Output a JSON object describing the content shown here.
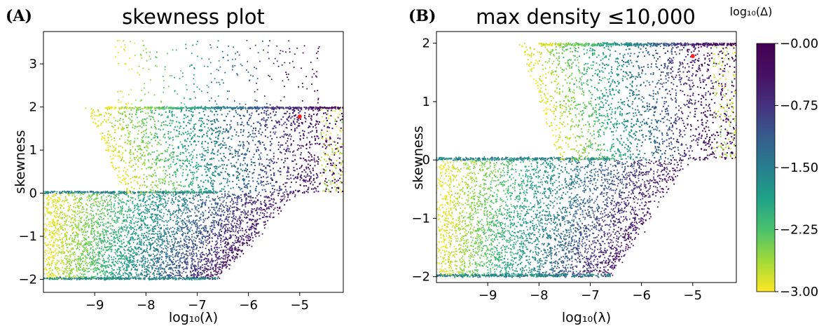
{
  "chart_data": [
    {
      "type": "scatter",
      "panel_label": "(A)",
      "title": "skewness plot",
      "xlabel": "log₁₀(λ)",
      "ylabel": "skewness",
      "xlim": [
        -10.0,
        -4.15
      ],
      "ylim": [
        -2.3,
        3.75
      ],
      "xticks": [
        -9,
        -8,
        -7,
        -6,
        -5
      ],
      "xtick_labels": [
        "−9",
        "−8",
        "−7",
        "−6",
        "−5"
      ],
      "yticks": [
        -2,
        -1,
        0,
        1,
        2,
        3
      ],
      "ytick_labels": [
        "−2",
        "−1",
        "0",
        "1",
        "2",
        "3"
      ],
      "color_variable": "log₁₀(Δ)",
      "marker": {
        "x": -5.0,
        "y": 1.78,
        "color": "#ff2222"
      },
      "point_groups": [
        {
          "region": "lower band",
          "x_range": [
            -10.0,
            -5.4
          ],
          "y_range": [
            -2.0,
            0.0
          ],
          "log10_delta_range": [
            -3.0,
            -0.2
          ]
        },
        {
          "region": "upper band",
          "x_range": [
            -8.8,
            -4.15
          ],
          "y_range": [
            0.0,
            2.0
          ],
          "log10_delta_range": [
            -3.0,
            -0.1
          ]
        },
        {
          "region": "sparse top",
          "x_range": [
            -8.6,
            -4.6
          ],
          "y_range": [
            2.0,
            3.55
          ],
          "log10_delta_range": [
            -3.0,
            -0.3
          ]
        }
      ]
    },
    {
      "type": "scatter",
      "panel_label": "(B)",
      "title": "max density ≤10,000",
      "xlabel": "log₁₀(λ)",
      "ylabel": "skewness",
      "xlim": [
        -10.0,
        -4.15
      ],
      "ylim": [
        -2.1,
        2.2
      ],
      "xticks": [
        -9,
        -8,
        -7,
        -6,
        -5
      ],
      "xtick_labels": [
        "−9",
        "−8",
        "−7",
        "−6",
        "−5"
      ],
      "yticks": [
        -2,
        -1,
        0,
        1,
        2
      ],
      "ytick_labels": [
        "−2",
        "−1",
        "0",
        "1",
        "2"
      ],
      "color_variable": "log₁₀(Δ)",
      "marker": {
        "x": -5.0,
        "y": 1.78,
        "color": "#ff2222"
      },
      "point_groups": [
        {
          "region": "lower band",
          "x_range": [
            -10.0,
            -5.4
          ],
          "y_range": [
            -2.0,
            0.05
          ],
          "log10_delta_range": [
            -3.0,
            -0.2
          ]
        },
        {
          "region": "upper band",
          "x_range": [
            -8.0,
            -4.15
          ],
          "y_range": [
            0.0,
            2.0
          ],
          "log10_delta_range": [
            -3.0,
            -0.1
          ]
        }
      ]
    }
  ],
  "colorbar": {
    "title": "log₁₀(Δ)",
    "ticks": [
      -0.0,
      -0.75,
      -1.5,
      -2.25,
      -3.0
    ],
    "tick_labels": [
      "−0.00",
      "−0.75",
      "−1.50",
      "−2.25",
      "−3.00"
    ],
    "range": [
      -3.0,
      0.0
    ],
    "colormap": "viridis"
  }
}
